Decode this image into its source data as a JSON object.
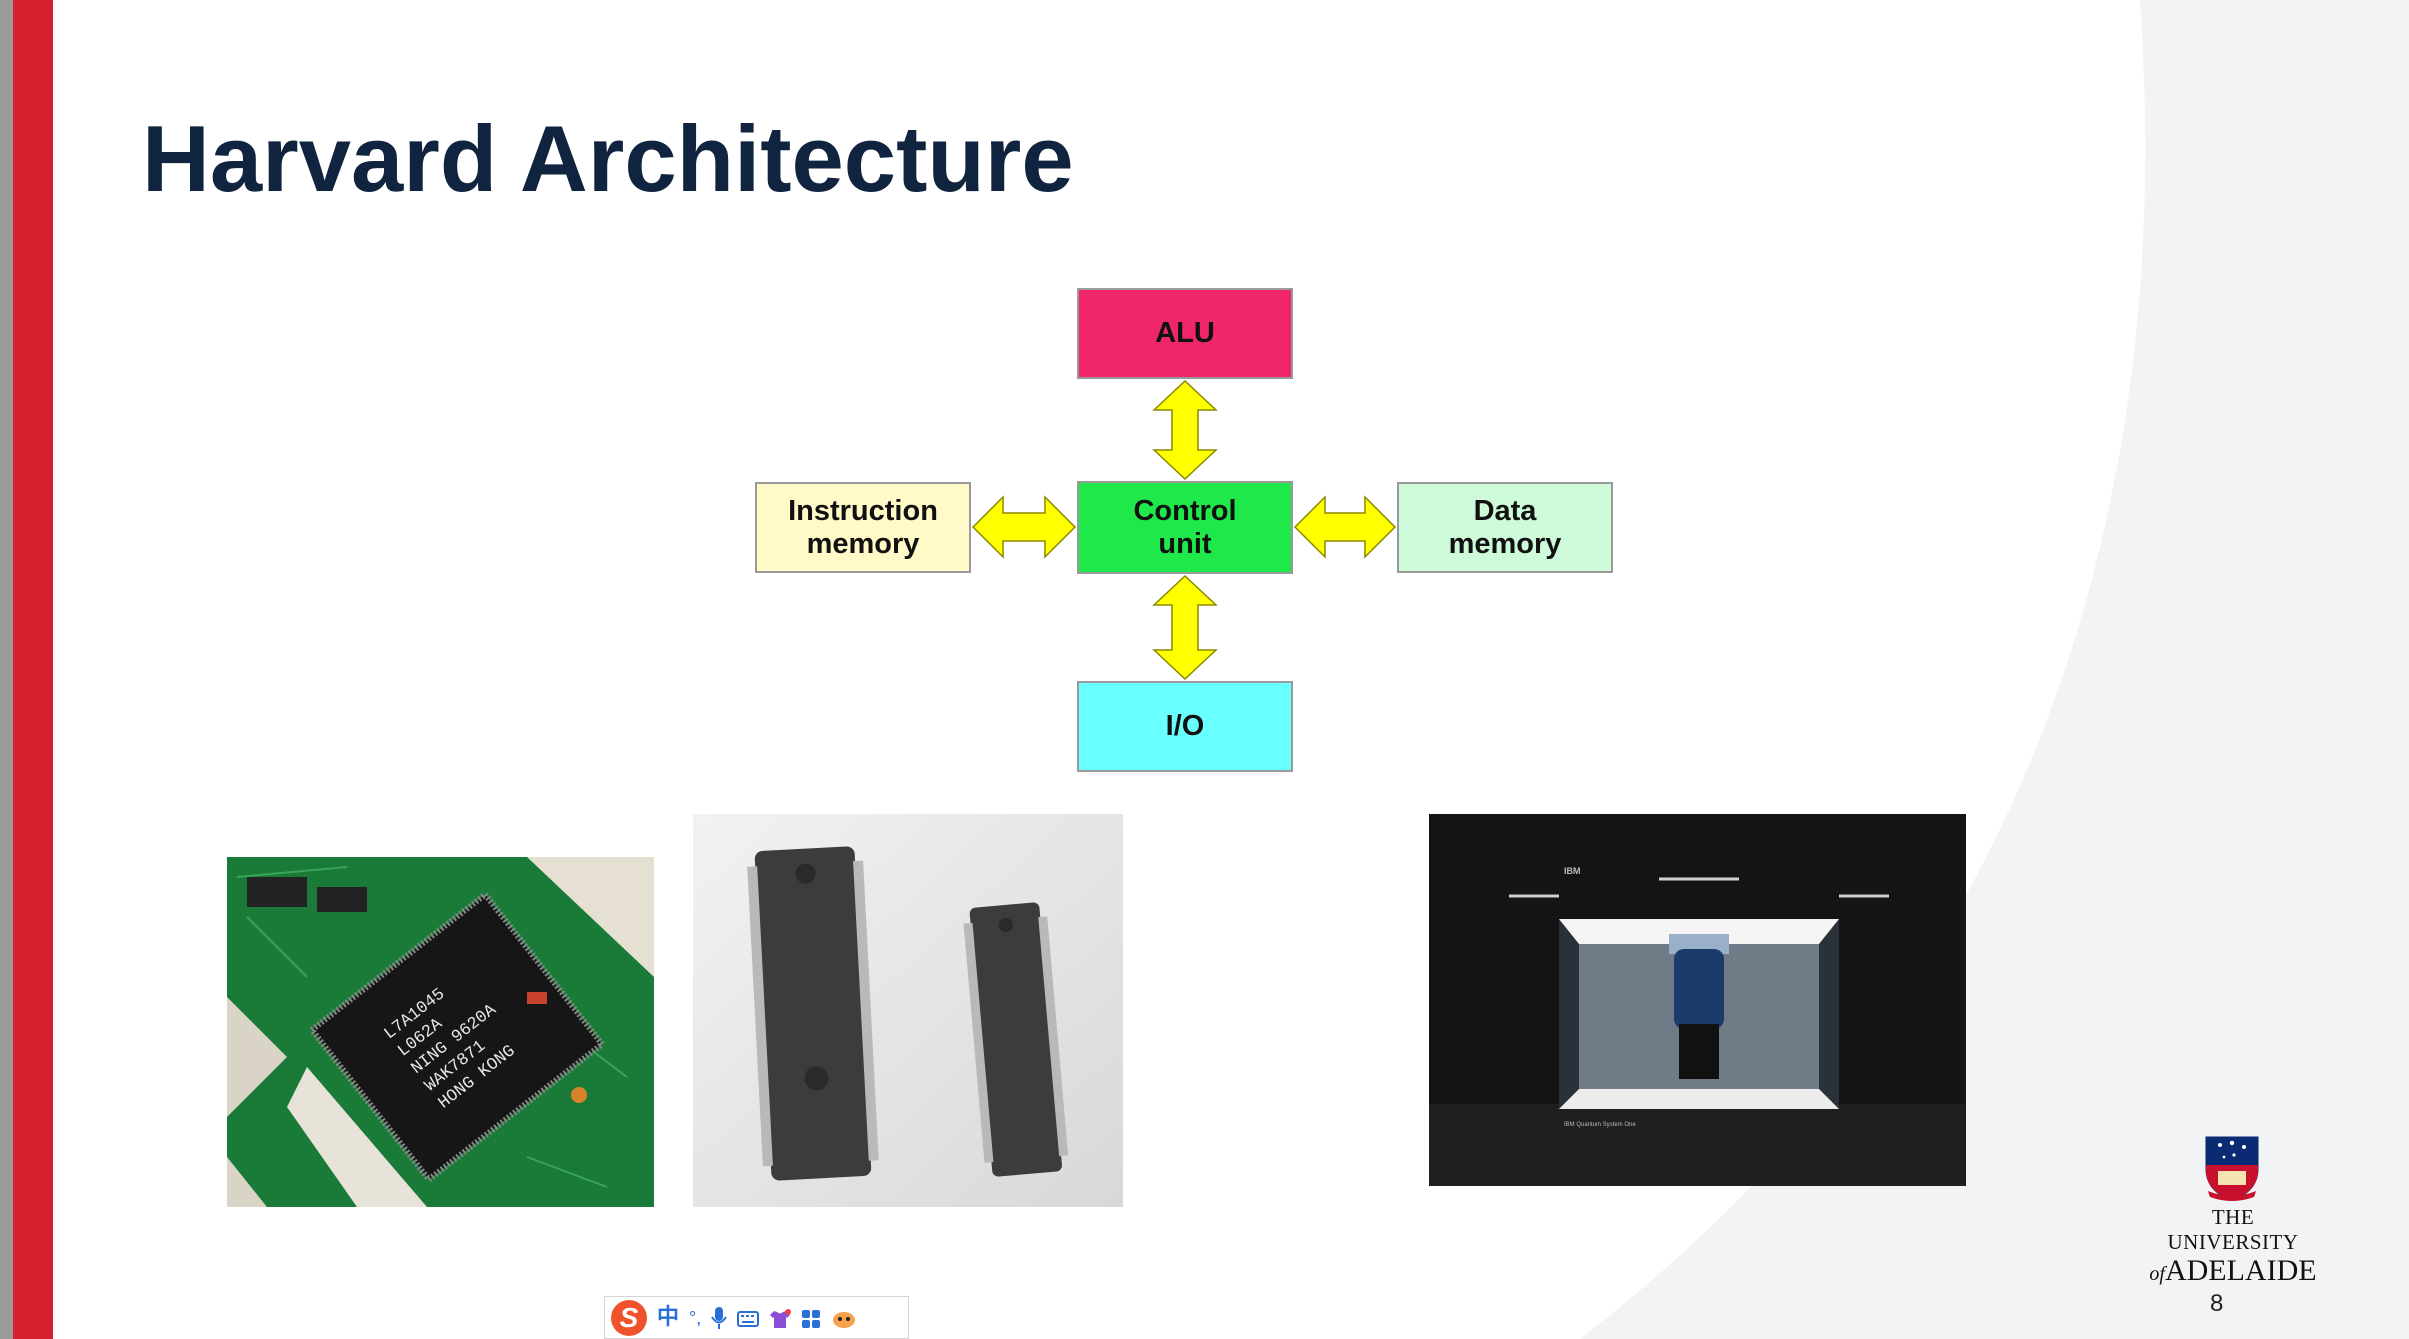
{
  "slide": {
    "title": "Harvard Architecture",
    "page_number": "8"
  },
  "diagram": {
    "alu": {
      "label": "ALU",
      "color": "#f0266a"
    },
    "control_unit": {
      "label_line1": "Control",
      "label_line2": "unit",
      "color": "#1ee84a"
    },
    "instruction_memory": {
      "label_line1": "Instruction",
      "label_line2": "memory",
      "color": "#fffac8"
    },
    "data_memory": {
      "label_line1": "Data",
      "label_line2": "memory",
      "color": "#cdfad8"
    },
    "io": {
      "label": "I/O",
      "color": "#6affff"
    },
    "arrow_color": "#ffff00"
  },
  "photos": {
    "chip1": {
      "text_lines": [
        "L7A1045",
        "L062A",
        "NING 9620A",
        "WAK7871",
        "HONG KONG"
      ]
    },
    "chip2": {},
    "quantum": {
      "brand": "IBM",
      "caption": "IBM Quantum System One"
    }
  },
  "logo": {
    "line1": "THE UNIVERSITY",
    "line2_prefix": "of",
    "line2": "ADELAIDE"
  },
  "ime_toolbar": {
    "logo_letter": "S",
    "lang": "中",
    "punct": "°,"
  }
}
